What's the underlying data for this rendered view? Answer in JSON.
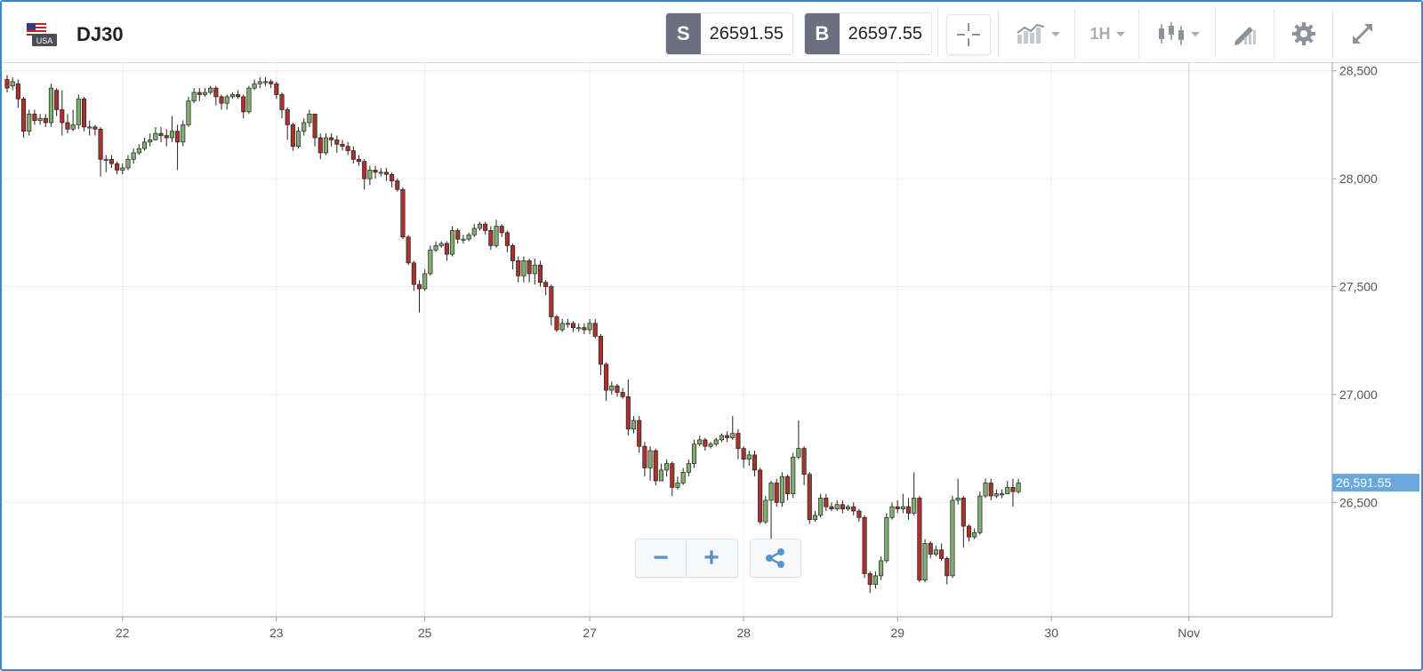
{
  "header": {
    "flag_label": "USA",
    "symbol": "DJ30",
    "sell_tag": "S",
    "sell_price": "26591.55",
    "buy_tag": "B",
    "buy_price": "26597.55",
    "timeframe": "1H"
  },
  "icons": {
    "crosshair": "crosshair-icon",
    "chart_style": "line-chart-icon",
    "candles": "candlestick-icon",
    "drawing": "pencil-icon",
    "settings": "gear-icon",
    "fullscreen": "expand-icon"
  },
  "colors": {
    "up": "#7fae6e",
    "down": "#a8322c",
    "accent": "#5a93c9",
    "price_label_bg": "#6aa8dc"
  },
  "chart_data": {
    "type": "candlestick",
    "title": "",
    "xlabel": "",
    "ylabel": "",
    "ylim": [
      25970,
      28540
    ],
    "yticks": [
      26500,
      27000,
      27500,
      28000,
      28500
    ],
    "ytick_labels": [
      "26,500",
      "27,000",
      "27,500",
      "28,000",
      "28,500"
    ],
    "xtick_labels": [
      "22",
      "23",
      "25",
      "27",
      "28",
      "29",
      "30",
      "Nov"
    ],
    "xtick_index": [
      21,
      49,
      76,
      106,
      134,
      162,
      190,
      215
    ],
    "current_price": 26591.55,
    "current_price_label": "26,591.55",
    "grid": true,
    "candles": [
      [
        28460,
        28420,
        28480,
        28400
      ],
      [
        28430,
        28450,
        28470,
        28410
      ],
      [
        28440,
        28370,
        28460,
        28330
      ],
      [
        28370,
        28220,
        28380,
        28190
      ],
      [
        28220,
        28300,
        28320,
        28200
      ],
      [
        28300,
        28270,
        28320,
        28250
      ],
      [
        28270,
        28280,
        28300,
        28250
      ],
      [
        28280,
        28260,
        28300,
        28240
      ],
      [
        28260,
        28420,
        28440,
        28240
      ],
      [
        28410,
        28320,
        28420,
        28290
      ],
      [
        28320,
        28260,
        28410,
        28200
      ],
      [
        28260,
        28230,
        28300,
        28210
      ],
      [
        28230,
        28250,
        28320,
        28220
      ],
      [
        28250,
        28370,
        28390,
        28230
      ],
      [
        28370,
        28240,
        28380,
        28220
      ],
      [
        28240,
        28240,
        28270,
        28200
      ],
      [
        28240,
        28230,
        28250,
        28200
      ],
      [
        28230,
        28090,
        28240,
        28010
      ],
      [
        28090,
        28090,
        28110,
        28030
      ],
      [
        28090,
        28070,
        28110,
        28050
      ],
      [
        28070,
        28040,
        28080,
        28020
      ],
      [
        28040,
        28050,
        28070,
        28020
      ],
      [
        28050,
        28090,
        28110,
        28040
      ],
      [
        28090,
        28120,
        28140,
        28070
      ],
      [
        28120,
        28140,
        28160,
        28110
      ],
      [
        28140,
        28170,
        28190,
        28130
      ],
      [
        28170,
        28180,
        28210,
        28150
      ],
      [
        28180,
        28210,
        28240,
        28180
      ],
      [
        28210,
        28200,
        28240,
        28170
      ],
      [
        28200,
        28190,
        28230,
        28150
      ],
      [
        28190,
        28220,
        28290,
        28170
      ],
      [
        28220,
        28170,
        28250,
        28040
      ],
      [
        28170,
        28250,
        28270,
        28150
      ],
      [
        28250,
        28360,
        28380,
        28240
      ],
      [
        28360,
        28400,
        28420,
        28350
      ],
      [
        28400,
        28390,
        28420,
        28360
      ],
      [
        28390,
        28400,
        28420,
        28380
      ],
      [
        28400,
        28420,
        28430,
        28390
      ],
      [
        28420,
        28380,
        28430,
        28340
      ],
      [
        28380,
        28350,
        28390,
        28320
      ],
      [
        28350,
        28380,
        28390,
        28320
      ],
      [
        28380,
        28390,
        28400,
        28370
      ],
      [
        28390,
        28380,
        28410,
        28370
      ],
      [
        28380,
        28310,
        28390,
        28280
      ],
      [
        28310,
        28420,
        28430,
        28300
      ],
      [
        28420,
        28440,
        28460,
        28410
      ],
      [
        28440,
        28450,
        28470,
        28420
      ],
      [
        28450,
        28450,
        28470,
        28430
      ],
      [
        28450,
        28440,
        28460,
        28420
      ],
      [
        28440,
        28390,
        28450,
        28370
      ],
      [
        28390,
        28320,
        28400,
        28280
      ],
      [
        28320,
        28250,
        28330,
        28180
      ],
      [
        28250,
        28150,
        28260,
        28130
      ],
      [
        28150,
        28220,
        28240,
        28140
      ],
      [
        28220,
        28260,
        28280,
        28200
      ],
      [
        28260,
        28300,
        28320,
        28240
      ],
      [
        28300,
        28190,
        28300,
        28150
      ],
      [
        28190,
        28120,
        28210,
        28090
      ],
      [
        28120,
        28190,
        28210,
        28110
      ],
      [
        28190,
        28180,
        28210,
        28150
      ],
      [
        28180,
        28160,
        28200,
        28120
      ],
      [
        28160,
        28150,
        28180,
        28130
      ],
      [
        28150,
        28130,
        28170,
        28110
      ],
      [
        28130,
        28090,
        28150,
        28070
      ],
      [
        28090,
        28080,
        28110,
        28060
      ],
      [
        28080,
        28000,
        28090,
        27950
      ],
      [
        28000,
        28040,
        28060,
        27970
      ],
      [
        28040,
        28030,
        28060,
        28000
      ],
      [
        28030,
        28030,
        28050,
        28010
      ],
      [
        28030,
        28020,
        28050,
        27990
      ],
      [
        28020,
        27990,
        28030,
        27960
      ],
      [
        27990,
        27950,
        28000,
        27940
      ],
      [
        27950,
        27730,
        27960,
        27720
      ],
      [
        27730,
        27610,
        27740,
        27600
      ],
      [
        27610,
        27510,
        27620,
        27480
      ],
      [
        27510,
        27490,
        27530,
        27380
      ],
      [
        27490,
        27560,
        27580,
        27480
      ],
      [
        27560,
        27670,
        27690,
        27550
      ],
      [
        27670,
        27690,
        27710,
        27660
      ],
      [
        27690,
        27700,
        27710,
        27680
      ],
      [
        27700,
        27650,
        27710,
        27620
      ],
      [
        27650,
        27760,
        27780,
        27640
      ],
      [
        27760,
        27720,
        27770,
        27700
      ],
      [
        27720,
        27720,
        27740,
        27700
      ],
      [
        27720,
        27740,
        27750,
        27710
      ],
      [
        27740,
        27770,
        27790,
        27730
      ],
      [
        27770,
        27790,
        27800,
        27760
      ],
      [
        27790,
        27760,
        27800,
        27740
      ],
      [
        27760,
        27690,
        27780,
        27670
      ],
      [
        27690,
        27780,
        27810,
        27680
      ],
      [
        27780,
        27750,
        27790,
        27730
      ],
      [
        27750,
        27690,
        27760,
        27660
      ],
      [
        27690,
        27620,
        27700,
        27580
      ],
      [
        27620,
        27550,
        27640,
        27520
      ],
      [
        27550,
        27620,
        27640,
        27520
      ],
      [
        27620,
        27560,
        27630,
        27520
      ],
      [
        27560,
        27600,
        27630,
        27510
      ],
      [
        27600,
        27520,
        27620,
        27500
      ],
      [
        27520,
        27500,
        27530,
        27460
      ],
      [
        27500,
        27360,
        27510,
        27320
      ],
      [
        27360,
        27300,
        27370,
        27290
      ],
      [
        27300,
        27330,
        27350,
        27290
      ],
      [
        27330,
        27330,
        27350,
        27310
      ],
      [
        27330,
        27310,
        27340,
        27290
      ],
      [
        27310,
        27310,
        27330,
        27290
      ],
      [
        27310,
        27300,
        27330,
        27280
      ],
      [
        27300,
        27330,
        27350,
        27280
      ],
      [
        27330,
        27270,
        27350,
        27260
      ],
      [
        27270,
        27140,
        27280,
        27090
      ],
      [
        27140,
        27020,
        27150,
        26970
      ],
      [
        27020,
        27040,
        27060,
        27000
      ],
      [
        27040,
        27010,
        27050,
        26990
      ],
      [
        27010,
        26990,
        27030,
        26980
      ],
      [
        26990,
        26840,
        27070,
        26810
      ],
      [
        26840,
        26880,
        26900,
        26820
      ],
      [
        26880,
        26760,
        26900,
        26730
      ],
      [
        26760,
        26660,
        26780,
        26620
      ],
      [
        26660,
        26740,
        26760,
        26600
      ],
      [
        26740,
        26600,
        26750,
        26580
      ],
      [
        26600,
        26650,
        26680,
        26600
      ],
      [
        26650,
        26680,
        26700,
        26620
      ],
      [
        26680,
        26570,
        26690,
        26530
      ],
      [
        26570,
        26590,
        26620,
        26560
      ],
      [
        26590,
        26640,
        26660,
        26580
      ],
      [
        26640,
        26680,
        26700,
        26620
      ],
      [
        26680,
        26770,
        26790,
        26660
      ],
      [
        26770,
        26790,
        26810,
        26760
      ],
      [
        26790,
        26760,
        26800,
        26740
      ],
      [
        26760,
        26770,
        26780,
        26750
      ],
      [
        26770,
        26790,
        26800,
        26760
      ],
      [
        26790,
        26810,
        26820,
        26780
      ],
      [
        26810,
        26800,
        26830,
        26780
      ],
      [
        26800,
        26820,
        26900,
        26790
      ],
      [
        26820,
        26750,
        26840,
        26700
      ],
      [
        26750,
        26700,
        26760,
        26660
      ],
      [
        26700,
        26720,
        26740,
        26670
      ],
      [
        26720,
        26650,
        26740,
        26620
      ],
      [
        26650,
        26410,
        26660,
        26400
      ],
      [
        26410,
        26510,
        26530,
        26400
      ],
      [
        26510,
        26590,
        26600,
        26280
      ],
      [
        26590,
        26500,
        26610,
        26480
      ],
      [
        26500,
        26620,
        26640,
        26480
      ],
      [
        26620,
        26540,
        26630,
        26510
      ],
      [
        26540,
        26710,
        26730,
        26520
      ],
      [
        26710,
        26750,
        26880,
        26700
      ],
      [
        26750,
        26630,
        26760,
        26580
      ],
      [
        26630,
        26420,
        26640,
        26400
      ],
      [
        26420,
        26440,
        26460,
        26410
      ],
      [
        26440,
        26520,
        26540,
        26430
      ],
      [
        26520,
        26480,
        26540,
        26460
      ],
      [
        26480,
        26470,
        26500,
        26460
      ],
      [
        26470,
        26490,
        26510,
        26460
      ],
      [
        26490,
        26470,
        26510,
        26450
      ],
      [
        26470,
        26480,
        26490,
        26460
      ],
      [
        26480,
        26460,
        26500,
        26440
      ],
      [
        26460,
        26430,
        26470,
        26410
      ],
      [
        26430,
        26170,
        26440,
        26150
      ],
      [
        26170,
        26120,
        26180,
        26080
      ],
      [
        26120,
        26160,
        26180,
        26100
      ],
      [
        26160,
        26230,
        26250,
        26140
      ],
      [
        26230,
        26430,
        26450,
        26220
      ],
      [
        26430,
        26480,
        26500,
        26420
      ],
      [
        26480,
        26470,
        26510,
        26450
      ],
      [
        26470,
        26480,
        26540,
        26450
      ],
      [
        26480,
        26450,
        26520,
        26420
      ],
      [
        26450,
        26520,
        26640,
        26440
      ],
      [
        26520,
        26140,
        26530,
        26130
      ],
      [
        26140,
        26310,
        26330,
        26130
      ],
      [
        26310,
        26260,
        26320,
        26240
      ],
      [
        26260,
        26280,
        26300,
        26250
      ],
      [
        26280,
        26240,
        26310,
        26230
      ],
      [
        26240,
        26160,
        26250,
        26120
      ],
      [
        26160,
        26510,
        26530,
        26150
      ],
      [
        26510,
        26520,
        26610,
        26490
      ],
      [
        26520,
        26390,
        26530,
        26290
      ],
      [
        26390,
        26340,
        26400,
        26320
      ],
      [
        26340,
        26360,
        26380,
        26330
      ],
      [
        26360,
        26530,
        26550,
        26350
      ],
      [
        26530,
        26590,
        26610,
        26520
      ],
      [
        26590,
        26530,
        26610,
        26510
      ],
      [
        26530,
        26540,
        26560,
        26520
      ],
      [
        26540,
        26540,
        26560,
        26520
      ],
      [
        26540,
        26570,
        26600,
        26540
      ],
      [
        26570,
        26550,
        26610,
        26480
      ],
      [
        26550,
        26590,
        26610,
        26540
      ]
    ]
  },
  "zoom": {
    "minus": "−",
    "plus": "+"
  }
}
